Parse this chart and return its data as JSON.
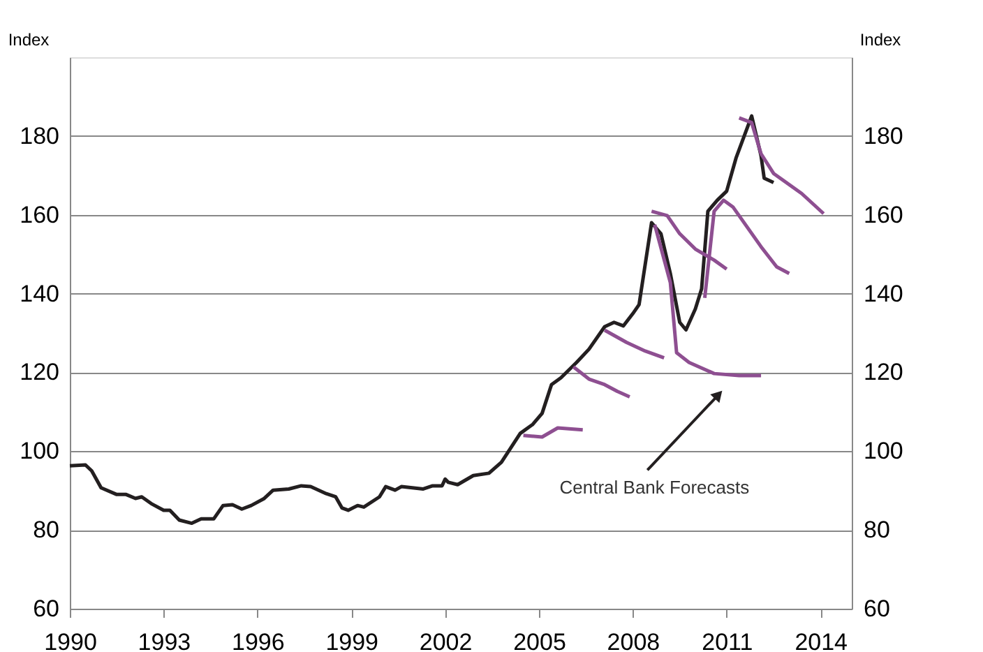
{
  "chart_data": {
    "type": "line",
    "ylabel": "Index",
    "y2label": "Index",
    "xlim": [
      1990,
      2015
    ],
    "xticks": [
      1990,
      1993,
      1996,
      1999,
      2002,
      2005,
      2008,
      2011,
      2014
    ],
    "ylim": [
      60,
      200
    ],
    "yticks": [
      60,
      80,
      100,
      120,
      140,
      160,
      180
    ],
    "y2lim": [
      60,
      200
    ],
    "y2ticks": [
      60,
      80,
      100,
      120,
      140,
      160,
      180
    ],
    "grid": "y",
    "legend": false,
    "line_style": "solid",
    "marker": "none",
    "annotations": [
      {
        "text": "Central Bank Forecasts",
        "x": 2010.7,
        "y": 114
      }
    ],
    "series": [
      {
        "color": "#231f20",
        "x": [
          1990.0,
          1990.5,
          1990.7,
          1991.0,
          1991.5,
          1991.8,
          1992.1,
          1992.3,
          1992.6,
          1993.0,
          1993.2,
          1993.5,
          1993.9,
          1994.2,
          1994.6,
          1994.9,
          1995.2,
          1995.5,
          1995.8,
          1996.2,
          1996.5,
          1997.0,
          1997.4,
          1997.7,
          1998.2,
          1998.5,
          1998.7,
          1998.9,
          1999.2,
          1999.4,
          1999.9,
          2000.1,
          2000.4,
          2000.6,
          2001.3,
          2001.6,
          2001.9,
          2002.0,
          2002.1,
          2002.4,
          2002.9,
          2003.4,
          2003.8,
          2004.4,
          2004.8,
          2005.1,
          2005.4,
          2005.7,
          2006.2,
          2006.6,
          2007.1,
          2007.4,
          2007.7,
          2008.0,
          2008.2,
          2008.6,
          2008.9,
          2009.2,
          2009.5,
          2009.7,
          2010.0,
          2010.2,
          2010.4,
          2010.7,
          2011.0,
          2011.3,
          2011.8,
          2012.1,
          2012.2,
          2012.5
        ],
        "values": [
          96.3,
          96.5,
          95,
          90.7,
          89,
          89,
          88,
          88.4,
          86.7,
          85,
          85,
          82.5,
          81.7,
          82.8,
          82.8,
          86.2,
          86.4,
          85.3,
          86.2,
          87.9,
          90.1,
          90.4,
          91.2,
          91,
          89.2,
          88.4,
          85.6,
          85,
          86.2,
          85.8,
          88.4,
          91,
          90.1,
          91,
          90.4,
          91.2,
          91.2,
          92.9,
          92.1,
          91.5,
          93.8,
          94.4,
          97.2,
          104.5,
          106.8,
          109.6,
          116.9,
          118.6,
          122.5,
          125.9,
          131.6,
          132.7,
          131.8,
          134.9,
          137.2,
          158,
          155.2,
          145.1,
          132.7,
          130.8,
          136.1,
          141.2,
          160.9,
          163.7,
          166,
          174.4,
          185.1,
          175,
          169.3,
          168.2
        ]
      },
      {
        "color": "#8e4f91",
        "x": [
          2004.5,
          2005.1,
          2005.6,
          2006.4
        ],
        "values": [
          104,
          103.6,
          105.9,
          105.4
        ]
      },
      {
        "color": "#8e4f91",
        "x": [
          2006.1,
          2006.6,
          2007.1,
          2007.5,
          2007.9
        ],
        "values": [
          121.4,
          118.3,
          116.9,
          115.2,
          113.8
        ]
      },
      {
        "color": "#8e4f91",
        "x": [
          2007.1,
          2007.8,
          2008.4,
          2009.0
        ],
        "values": [
          130.7,
          127.6,
          125.4,
          123.7
        ]
      },
      {
        "color": "#8e4f91",
        "x": [
          2008.6,
          2009.1,
          2009.5,
          2010.0,
          2010.6,
          2011.0
        ],
        "values": [
          160.9,
          159.8,
          155.2,
          151.3,
          148.5,
          146.2
        ]
      },
      {
        "color": "#8e4f91",
        "x": [
          2008.7,
          2009.2,
          2009.4,
          2009.8,
          2010.6,
          2011.4,
          2012.1
        ],
        "values": [
          157.5,
          142.8,
          125,
          122.5,
          119.7,
          119.2,
          119.2
        ]
      },
      {
        "color": "#8e4f91",
        "x": [
          2010.3,
          2010.6,
          2010.9,
          2011.2,
          2012.1,
          2012.6,
          2013.0
        ],
        "values": [
          138.9,
          160.9,
          163.7,
          162,
          151.9,
          146.8,
          145.1
        ]
      },
      {
        "color": "#8e4f91",
        "x": [
          2011.4,
          2011.8,
          2012.1,
          2012.5,
          2013.4,
          2014.1
        ],
        "values": [
          184.6,
          183.4,
          175.5,
          170.5,
          165.4,
          160.3
        ]
      }
    ]
  }
}
